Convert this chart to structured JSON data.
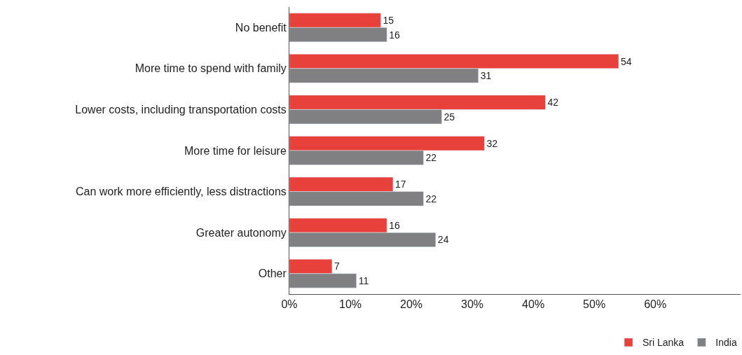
{
  "chart_data": {
    "type": "bar",
    "orientation": "horizontal",
    "categories": [
      "No benefit",
      "More time to spend with family",
      "Lower costs, including transportation costs",
      "More time for leisure",
      "Can work more efficiently, less distractions",
      "Greater autonomy",
      "Other"
    ],
    "series": [
      {
        "name": "Sri Lanka",
        "color": "#e8403a",
        "values": [
          15,
          54,
          42,
          32,
          17,
          16,
          7
        ]
      },
      {
        "name": "India",
        "color": "#808083",
        "values": [
          16,
          31,
          25,
          22,
          22,
          24,
          11
        ]
      }
    ],
    "xlim": [
      0,
      74
    ],
    "xticks": [
      {
        "value": 0,
        "label": "0%"
      },
      {
        "value": 10,
        "label": "10%"
      },
      {
        "value": 20,
        "label": "20%"
      },
      {
        "value": 30,
        "label": "30%"
      },
      {
        "value": 40,
        "label": "40%"
      },
      {
        "value": 50,
        "label": "50%"
      },
      {
        "value": 60,
        "label": "60%"
      }
    ],
    "data_labels": true,
    "legend": "bottom right"
  }
}
